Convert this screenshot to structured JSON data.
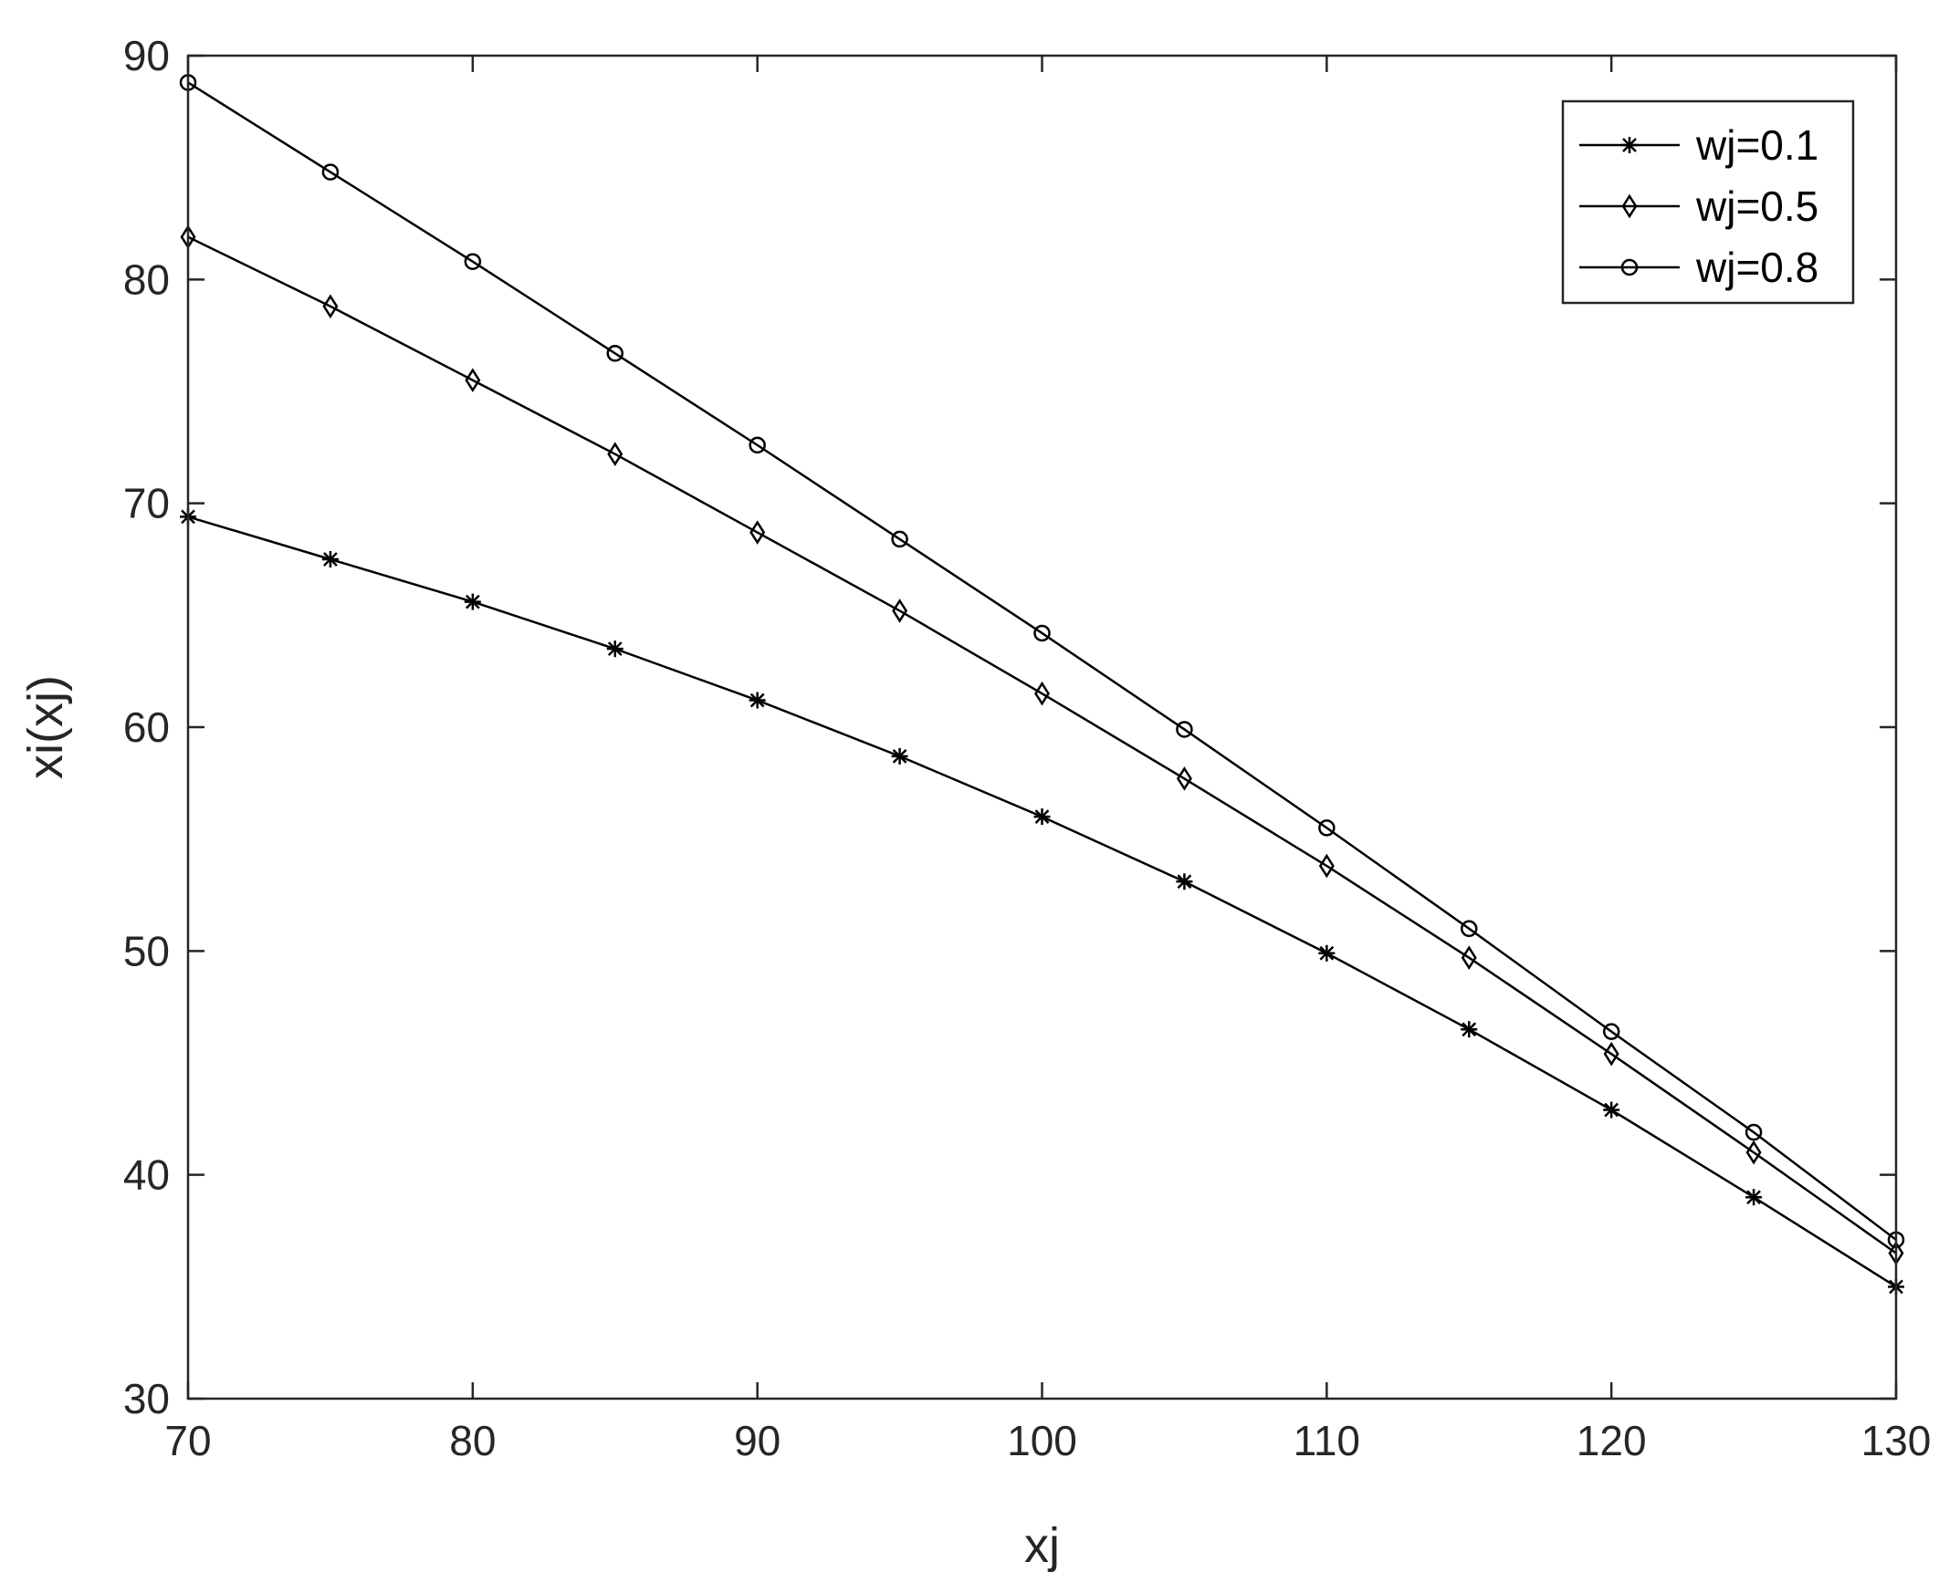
{
  "chart_data": {
    "type": "line",
    "xlabel": "xj",
    "ylabel": "xi(xj)",
    "xlim": [
      70,
      130
    ],
    "ylim": [
      30,
      90
    ],
    "xticks": [
      70,
      80,
      90,
      100,
      110,
      120,
      130
    ],
    "yticks": [
      30,
      40,
      50,
      60,
      70,
      80,
      90
    ],
    "grid": false,
    "legend_position": "top-right",
    "x": [
      70,
      75,
      80,
      85,
      90,
      95,
      100,
      105,
      110,
      115,
      120,
      125,
      130
    ],
    "series": [
      {
        "name": "wj=0.1",
        "marker": "asterisk",
        "color": "#000000",
        "values": [
          69.4,
          67.5,
          65.6,
          63.5,
          61.2,
          58.7,
          56.0,
          53.1,
          49.9,
          46.5,
          42.9,
          39.0,
          35.0
        ]
      },
      {
        "name": "wj=0.5",
        "marker": "diamond",
        "color": "#000000",
        "values": [
          81.9,
          78.8,
          75.5,
          72.2,
          68.7,
          65.2,
          61.5,
          57.7,
          53.8,
          49.7,
          45.4,
          41.0,
          36.5
        ]
      },
      {
        "name": "wj=0.8",
        "marker": "circle",
        "color": "#000000",
        "values": [
          88.8,
          84.8,
          80.8,
          76.7,
          72.6,
          68.4,
          64.2,
          59.9,
          55.5,
          51.0,
          46.4,
          41.9,
          37.1
        ]
      }
    ]
  }
}
